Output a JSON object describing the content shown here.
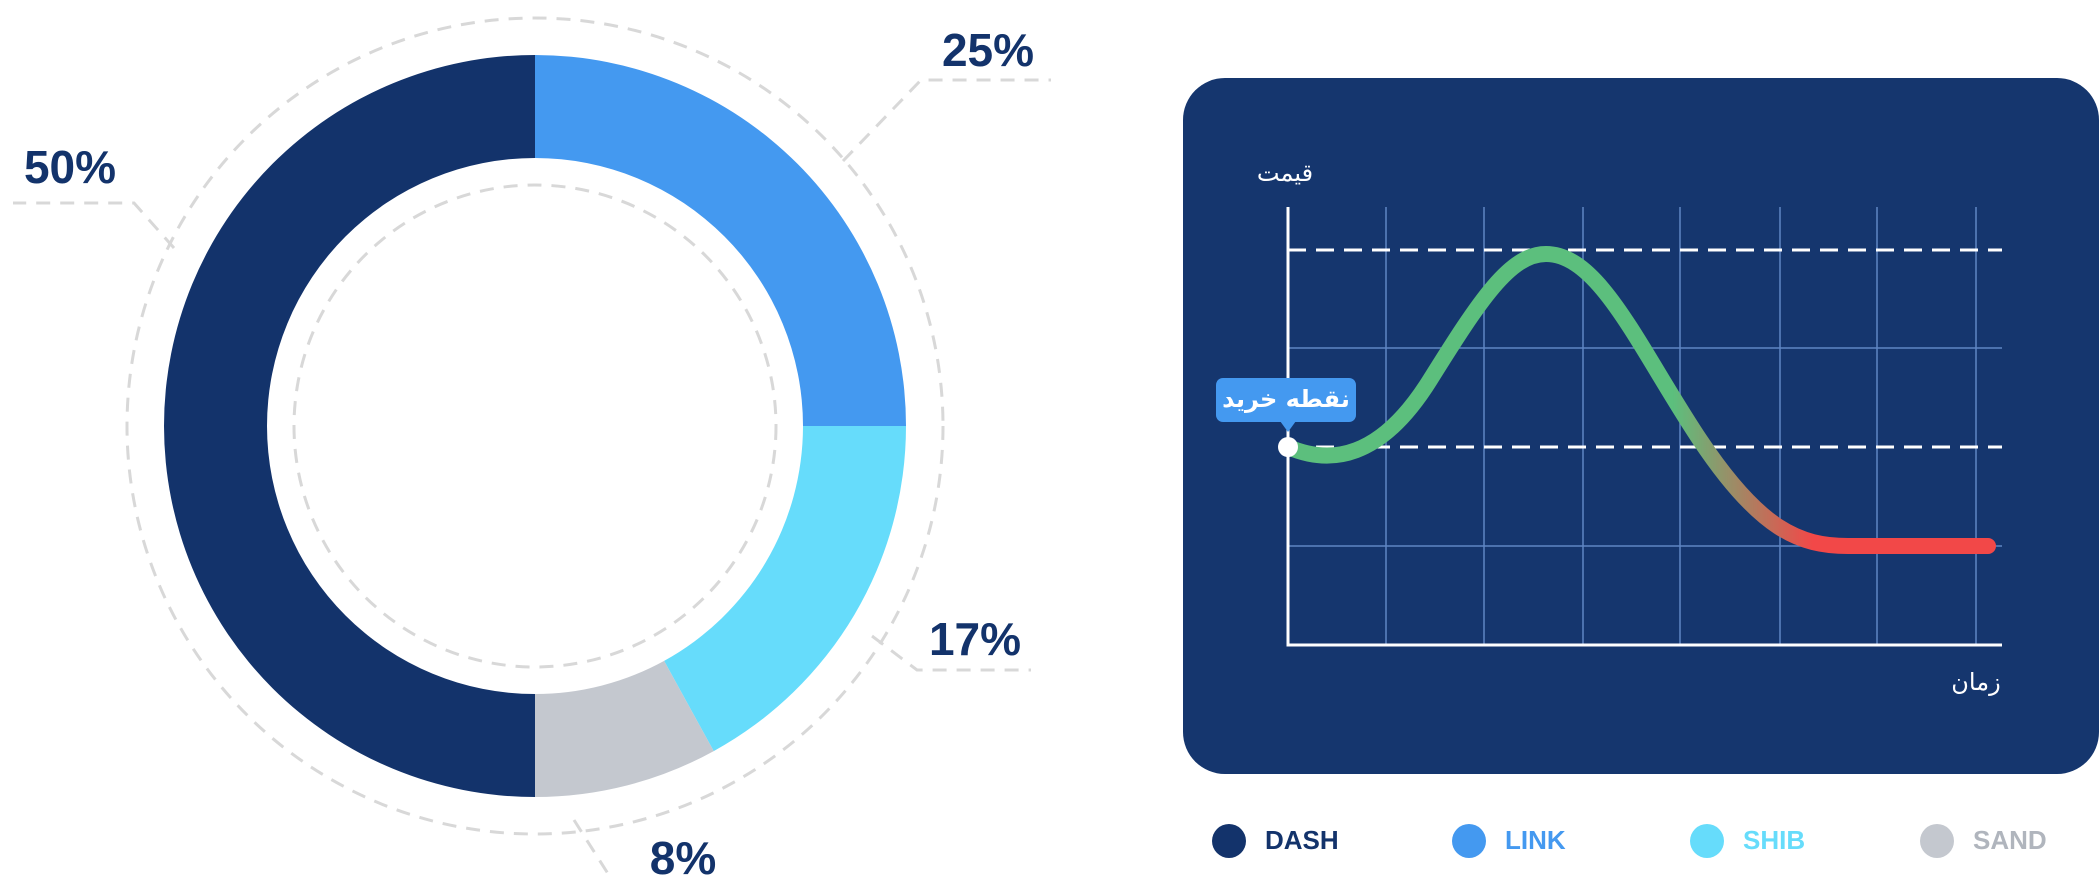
{
  "chart_data": {
    "type": "pie",
    "categories": [
      "LINK",
      "SHIB",
      "SAND",
      "DASH"
    ],
    "values": [
      25,
      17,
      8,
      50
    ],
    "value_labels": [
      "25%",
      "17%",
      "8%",
      "50%"
    ],
    "colors": [
      "#4499f0",
      "#66dcfb",
      "#c4c8cf",
      "#13336b"
    ],
    "legend_order": [
      "DASH",
      "LINK",
      "SHIB",
      "SAND"
    ]
  },
  "illustration": {
    "y_label": "قیمت",
    "x_label": "زمان",
    "annotation": "نقطه خرید"
  }
}
